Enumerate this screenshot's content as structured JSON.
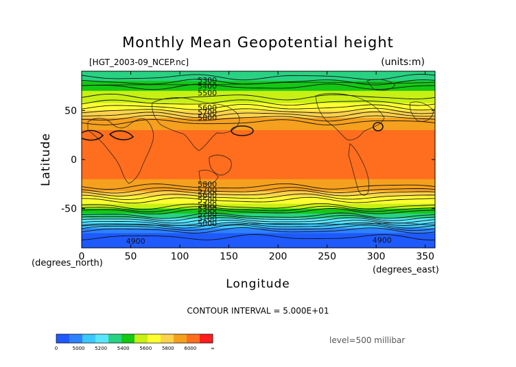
{
  "chart_data": {
    "type": "heatmap",
    "title": "Monthly Mean Geopotential height",
    "file_label": "[HGT_2003-09_NCEP.nc]",
    "units_label": "(units:m)",
    "xlabel": "Longitude",
    "ylabel": "Latitude",
    "x_units_label": "(degrees_east)",
    "y_units_label": "(degrees_north)",
    "xlim": [
      0,
      360
    ],
    "ylim": [
      -90,
      90
    ],
    "x_ticks": [
      0,
      50,
      100,
      150,
      200,
      250,
      300,
      350
    ],
    "y_ticks": [
      50,
      0,
      -50
    ],
    "contour_interval_label": "CONTOUR INTERVAL = 5.000E+01",
    "level_label": "level=500 millibar",
    "colorbar": {
      "colors": [
        "#1e5aff",
        "#2d82ff",
        "#3cc8ff",
        "#5ae6ff",
        "#28d282",
        "#14c814",
        "#c8f014",
        "#ffff32",
        "#ffd24b",
        "#f5a01e",
        "#ff6e1e",
        "#ff1e1e"
      ],
      "labels": [
        "0",
        "5000",
        "5200",
        "5400",
        "5600",
        "5800",
        "6000",
        "∞"
      ]
    },
    "latitude_profile": {
      "latitude": [
        90,
        85,
        80,
        75,
        70,
        65,
        60,
        55,
        50,
        45,
        40,
        35,
        30,
        20,
        10,
        0,
        -10,
        -20,
        -25,
        -30,
        -35,
        -40,
        -45,
        -50,
        -55,
        -60,
        -65,
        -70,
        -75,
        -80,
        -85,
        -90
      ],
      "height_m": [
        5310,
        5340,
        5390,
        5440,
        5500,
        5540,
        5580,
        5630,
        5690,
        5760,
        5830,
        5880,
        5900,
        5910,
        5910,
        5900,
        5900,
        5900,
        5880,
        5820,
        5740,
        5670,
        5600,
        5510,
        5400,
        5290,
        5190,
        5090,
        5000,
        4940,
        4920,
        4900
      ]
    },
    "contour_labels": [
      {
        "text": "5300",
        "lon": 128,
        "lat": 81
      },
      {
        "text": "5400",
        "lon": 128,
        "lat": 75
      },
      {
        "text": "5500",
        "lon": 128,
        "lat": 68
      },
      {
        "text": "5600",
        "lon": 128,
        "lat": 53
      },
      {
        "text": "5700",
        "lon": 128,
        "lat": 48
      },
      {
        "text": "5800",
        "lon": 128,
        "lat": 43
      },
      {
        "text": "5800",
        "lon": 128,
        "lat": -25
      },
      {
        "text": "5700",
        "lon": 128,
        "lat": -31
      },
      {
        "text": "5600",
        "lon": 128,
        "lat": -36
      },
      {
        "text": "5500",
        "lon": 128,
        "lat": -41
      },
      {
        "text": "5400",
        "lon": 128,
        "lat": -46
      },
      {
        "text": "5300",
        "lon": 128,
        "lat": -50
      },
      {
        "text": "5200",
        "lon": 128,
        "lat": -55
      },
      {
        "text": "5100",
        "lon": 128,
        "lat": -60
      },
      {
        "text": "5000",
        "lon": 128,
        "lat": -65
      },
      {
        "text": "4900",
        "lon": 55,
        "lat": -83
      },
      {
        "text": "4900",
        "lon": 306,
        "lat": -82
      }
    ],
    "grid": false
  }
}
